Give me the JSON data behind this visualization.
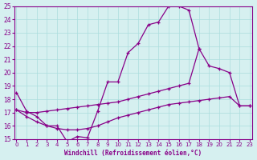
{
  "xlabel": "Windchill (Refroidissement éolien,°C)",
  "bg_color": "#d6f0f0",
  "grid_color": "#aadddd",
  "line_color": "#880088",
  "xmin": 0,
  "xmax": 23,
  "ymin": 15,
  "ymax": 25,
  "line1_x": [
    0,
    1,
    2,
    3,
    4,
    5,
    6,
    7,
    8,
    9,
    10,
    11,
    12,
    13,
    14,
    15,
    16,
    17,
    18
  ],
  "line1_y": [
    18.5,
    17.1,
    16.7,
    16.0,
    16.0,
    14.8,
    15.2,
    15.1,
    17.1,
    19.3,
    19.3,
    21.5,
    22.2,
    23.6,
    23.8,
    25.0,
    25.0,
    24.7,
    21.8
  ],
  "line2_x": [
    0,
    1,
    2,
    3,
    4,
    5,
    6,
    7,
    8,
    9,
    10,
    11,
    12,
    13,
    14,
    15,
    16,
    17,
    18,
    19,
    20,
    21,
    22,
    23
  ],
  "line2_y": [
    17.2,
    17.0,
    17.0,
    17.1,
    17.2,
    17.3,
    17.4,
    17.5,
    17.6,
    17.7,
    17.8,
    18.0,
    18.2,
    18.4,
    18.6,
    18.8,
    19.0,
    19.2,
    21.8,
    20.5,
    20.3,
    20.0,
    17.5,
    17.5
  ],
  "line3_x": [
    0,
    1,
    2,
    3,
    4,
    5,
    6,
    7,
    8,
    9,
    10,
    11,
    12,
    13,
    14,
    15,
    16,
    17,
    18,
    19,
    20,
    21,
    22,
    23
  ],
  "line3_y": [
    17.2,
    16.7,
    16.3,
    16.0,
    15.8,
    15.7,
    15.7,
    15.8,
    16.0,
    16.3,
    16.6,
    16.8,
    17.0,
    17.2,
    17.4,
    17.6,
    17.7,
    17.8,
    17.9,
    18.0,
    18.1,
    18.2,
    17.5,
    17.5
  ],
  "xticks": [
    0,
    1,
    2,
    3,
    4,
    5,
    6,
    7,
    8,
    9,
    10,
    11,
    12,
    13,
    14,
    15,
    16,
    17,
    18,
    19,
    20,
    21,
    22,
    23
  ],
  "yticks": [
    15,
    16,
    17,
    18,
    19,
    20,
    21,
    22,
    23,
    24,
    25
  ]
}
